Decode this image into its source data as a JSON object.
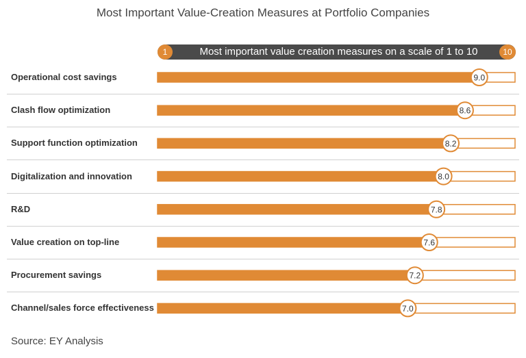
{
  "chart_data": {
    "type": "bar",
    "title": "Most Important Value-Creation Measures at Portfolio Companies",
    "scale": {
      "label": "Most important value creation measures on a scale of 1 to 10",
      "min_label": "1",
      "max_label": "10",
      "min": 1,
      "max": 10
    },
    "categories": [
      "Operational cost savings",
      "Clash flow optimization",
      "Support function optimization",
      "Digitalization and innovation",
      "R&D",
      "Value creation on top-line",
      "Procurement savings",
      "Channel/sales force effectiveness"
    ],
    "values": [
      9.0,
      8.6,
      8.2,
      8.0,
      7.8,
      7.6,
      7.2,
      7.0
    ],
    "value_labels": [
      "9.0",
      "8.6",
      "8.2",
      "8.0",
      "7.8",
      "7.6",
      "7.2",
      "7.0"
    ],
    "source": "Source: EY Analysis",
    "colors": {
      "bar": "#e08a35",
      "scale_bar": "#4a4a4a",
      "text": "#333333"
    }
  }
}
